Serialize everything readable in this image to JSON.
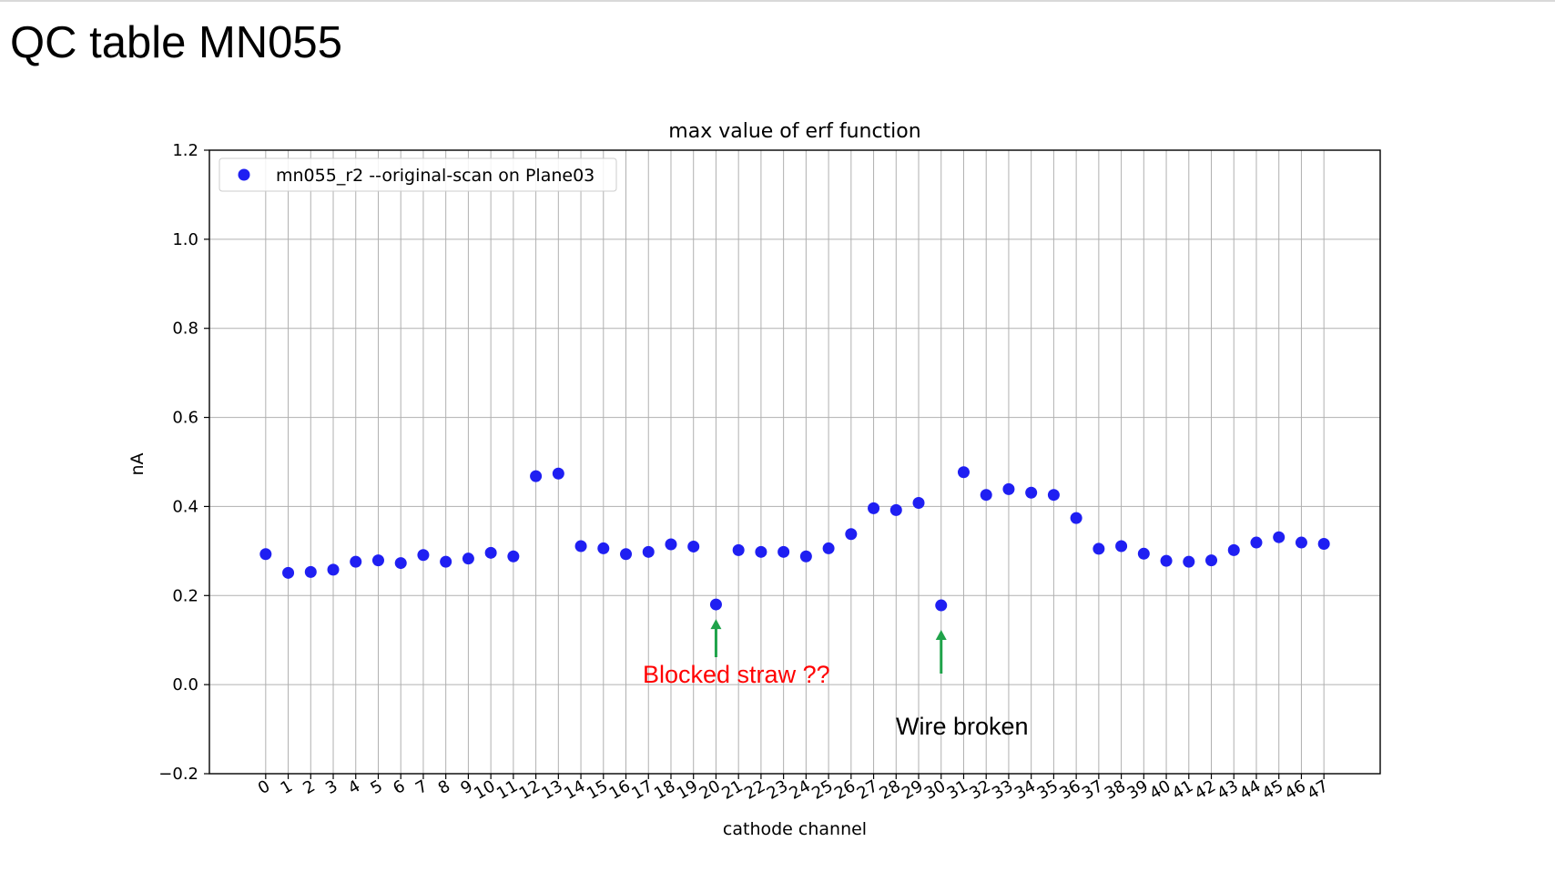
{
  "slide": {
    "title": "QC table MN055"
  },
  "chart_data": {
    "type": "scatter",
    "title": "max value of erf function",
    "xlabel": "cathode channel",
    "ylabel": "nA",
    "xlim": [
      -2.5,
      49.5
    ],
    "ylim": [
      -0.2,
      1.2
    ],
    "yticks": [
      -0.2,
      0.0,
      0.2,
      0.4,
      0.6,
      0.8,
      1.0,
      1.2
    ],
    "ytick_labels": [
      "−0.2",
      "0.0",
      "0.2",
      "0.4",
      "0.6",
      "0.8",
      "1.0",
      "1.2"
    ],
    "xticks": [
      0,
      1,
      2,
      3,
      4,
      5,
      6,
      7,
      8,
      9,
      10,
      11,
      12,
      13,
      14,
      15,
      16,
      17,
      18,
      19,
      20,
      21,
      22,
      23,
      24,
      25,
      26,
      27,
      28,
      29,
      30,
      31,
      32,
      33,
      34,
      35,
      36,
      37,
      38,
      39,
      40,
      41,
      42,
      43,
      44,
      45,
      46,
      47
    ],
    "grid": true,
    "legend_position": "top-left",
    "series": [
      {
        "name": "mn055_r2 --original-scan on Plane03",
        "color": "#1f1ff2",
        "marker": "circle",
        "x": [
          0,
          1,
          2,
          3,
          4,
          5,
          6,
          7,
          8,
          9,
          10,
          11,
          12,
          13,
          14,
          15,
          16,
          17,
          18,
          19,
          20,
          21,
          22,
          23,
          24,
          25,
          26,
          27,
          28,
          29,
          30,
          31,
          32,
          33,
          34,
          35,
          36,
          37,
          38,
          39,
          40,
          41,
          42,
          43,
          44,
          45,
          46,
          47
        ],
        "y": [
          0.293,
          0.251,
          0.253,
          0.258,
          0.276,
          0.279,
          0.273,
          0.291,
          0.276,
          0.283,
          0.296,
          0.288,
          0.468,
          0.474,
          0.311,
          0.306,
          0.293,
          0.298,
          0.315,
          0.31,
          0.18,
          0.302,
          0.298,
          0.298,
          0.288,
          0.306,
          0.338,
          0.396,
          0.392,
          0.408,
          0.178,
          0.477,
          0.426,
          0.439,
          0.431,
          0.426,
          0.374,
          0.305,
          0.311,
          0.294,
          0.278,
          0.276,
          0.279,
          0.302,
          0.319,
          0.331,
          0.319,
          0.316
        ]
      }
    ],
    "annotations": [
      {
        "text": "Blocked straw ??",
        "color": "#ff0000",
        "arrow_color": "#1fa34a",
        "target_x": 20
      },
      {
        "text": "Wire broken",
        "color": "#000000",
        "arrow_color": "#1fa34a",
        "target_x": 30
      }
    ]
  }
}
